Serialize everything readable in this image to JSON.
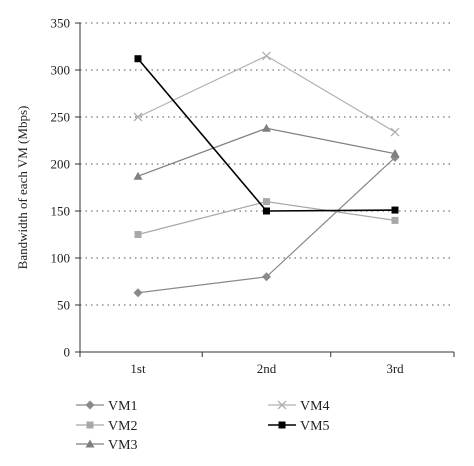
{
  "chart_data": {
    "type": "line",
    "title": "",
    "xlabel": "",
    "ylabel": "Bandwidth of each VM (Mbps)",
    "categories": [
      "1st",
      "2nd",
      "3rd"
    ],
    "ylim": [
      0,
      350
    ],
    "yticks": [
      0,
      50,
      100,
      150,
      200,
      250,
      300,
      350
    ],
    "grid": "horizontal dotted",
    "legend_position": "bottom",
    "series": [
      {
        "name": "VM1",
        "values": [
          63,
          80,
          207
        ],
        "color": "#8a8a8a",
        "marker": "diamond"
      },
      {
        "name": "VM2",
        "values": [
          125,
          160,
          140
        ],
        "color": "#a8a8a8",
        "marker": "square"
      },
      {
        "name": "VM3",
        "values": [
          187,
          238,
          211
        ],
        "color": "#7f7f7f",
        "marker": "triangle"
      },
      {
        "name": "VM4",
        "values": [
          250,
          315,
          234
        ],
        "color": "#b0b0b0",
        "marker": "x"
      },
      {
        "name": "VM5",
        "values": [
          312,
          150,
          151
        ],
        "color": "#000000",
        "marker": "square"
      }
    ]
  }
}
